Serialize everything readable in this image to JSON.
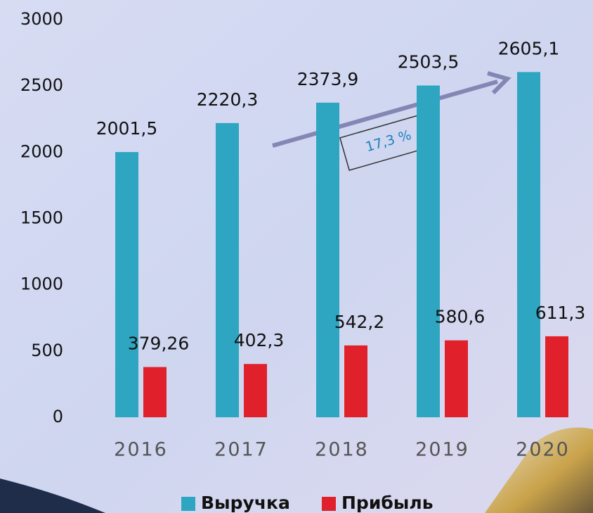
{
  "chart_data": {
    "type": "bar",
    "categories": [
      "2016",
      "2017",
      "2018",
      "2019",
      "2020"
    ],
    "series": [
      {
        "name": "Выручка",
        "color": "#2ea6c2",
        "values": [
          2001.5,
          2220.3,
          2373.9,
          2503.5,
          2605.1
        ],
        "value_labels": [
          "2001,5",
          "2220,3",
          "2373,9",
          "2503,5",
          "2605,1"
        ]
      },
      {
        "name": "Прибыль",
        "color": "#e0212b",
        "values": [
          379.26,
          402.3,
          542.2,
          580.6,
          611.3
        ],
        "value_labels": [
          "379,26",
          "402,3",
          "542,2",
          "580,6",
          "611,3"
        ]
      }
    ],
    "ylim": [
      0,
      3000
    ],
    "yticks": [
      0,
      500,
      1000,
      1500,
      2000,
      2500,
      3000
    ],
    "annotations": [
      {
        "text": "17,3 %"
      }
    ]
  }
}
